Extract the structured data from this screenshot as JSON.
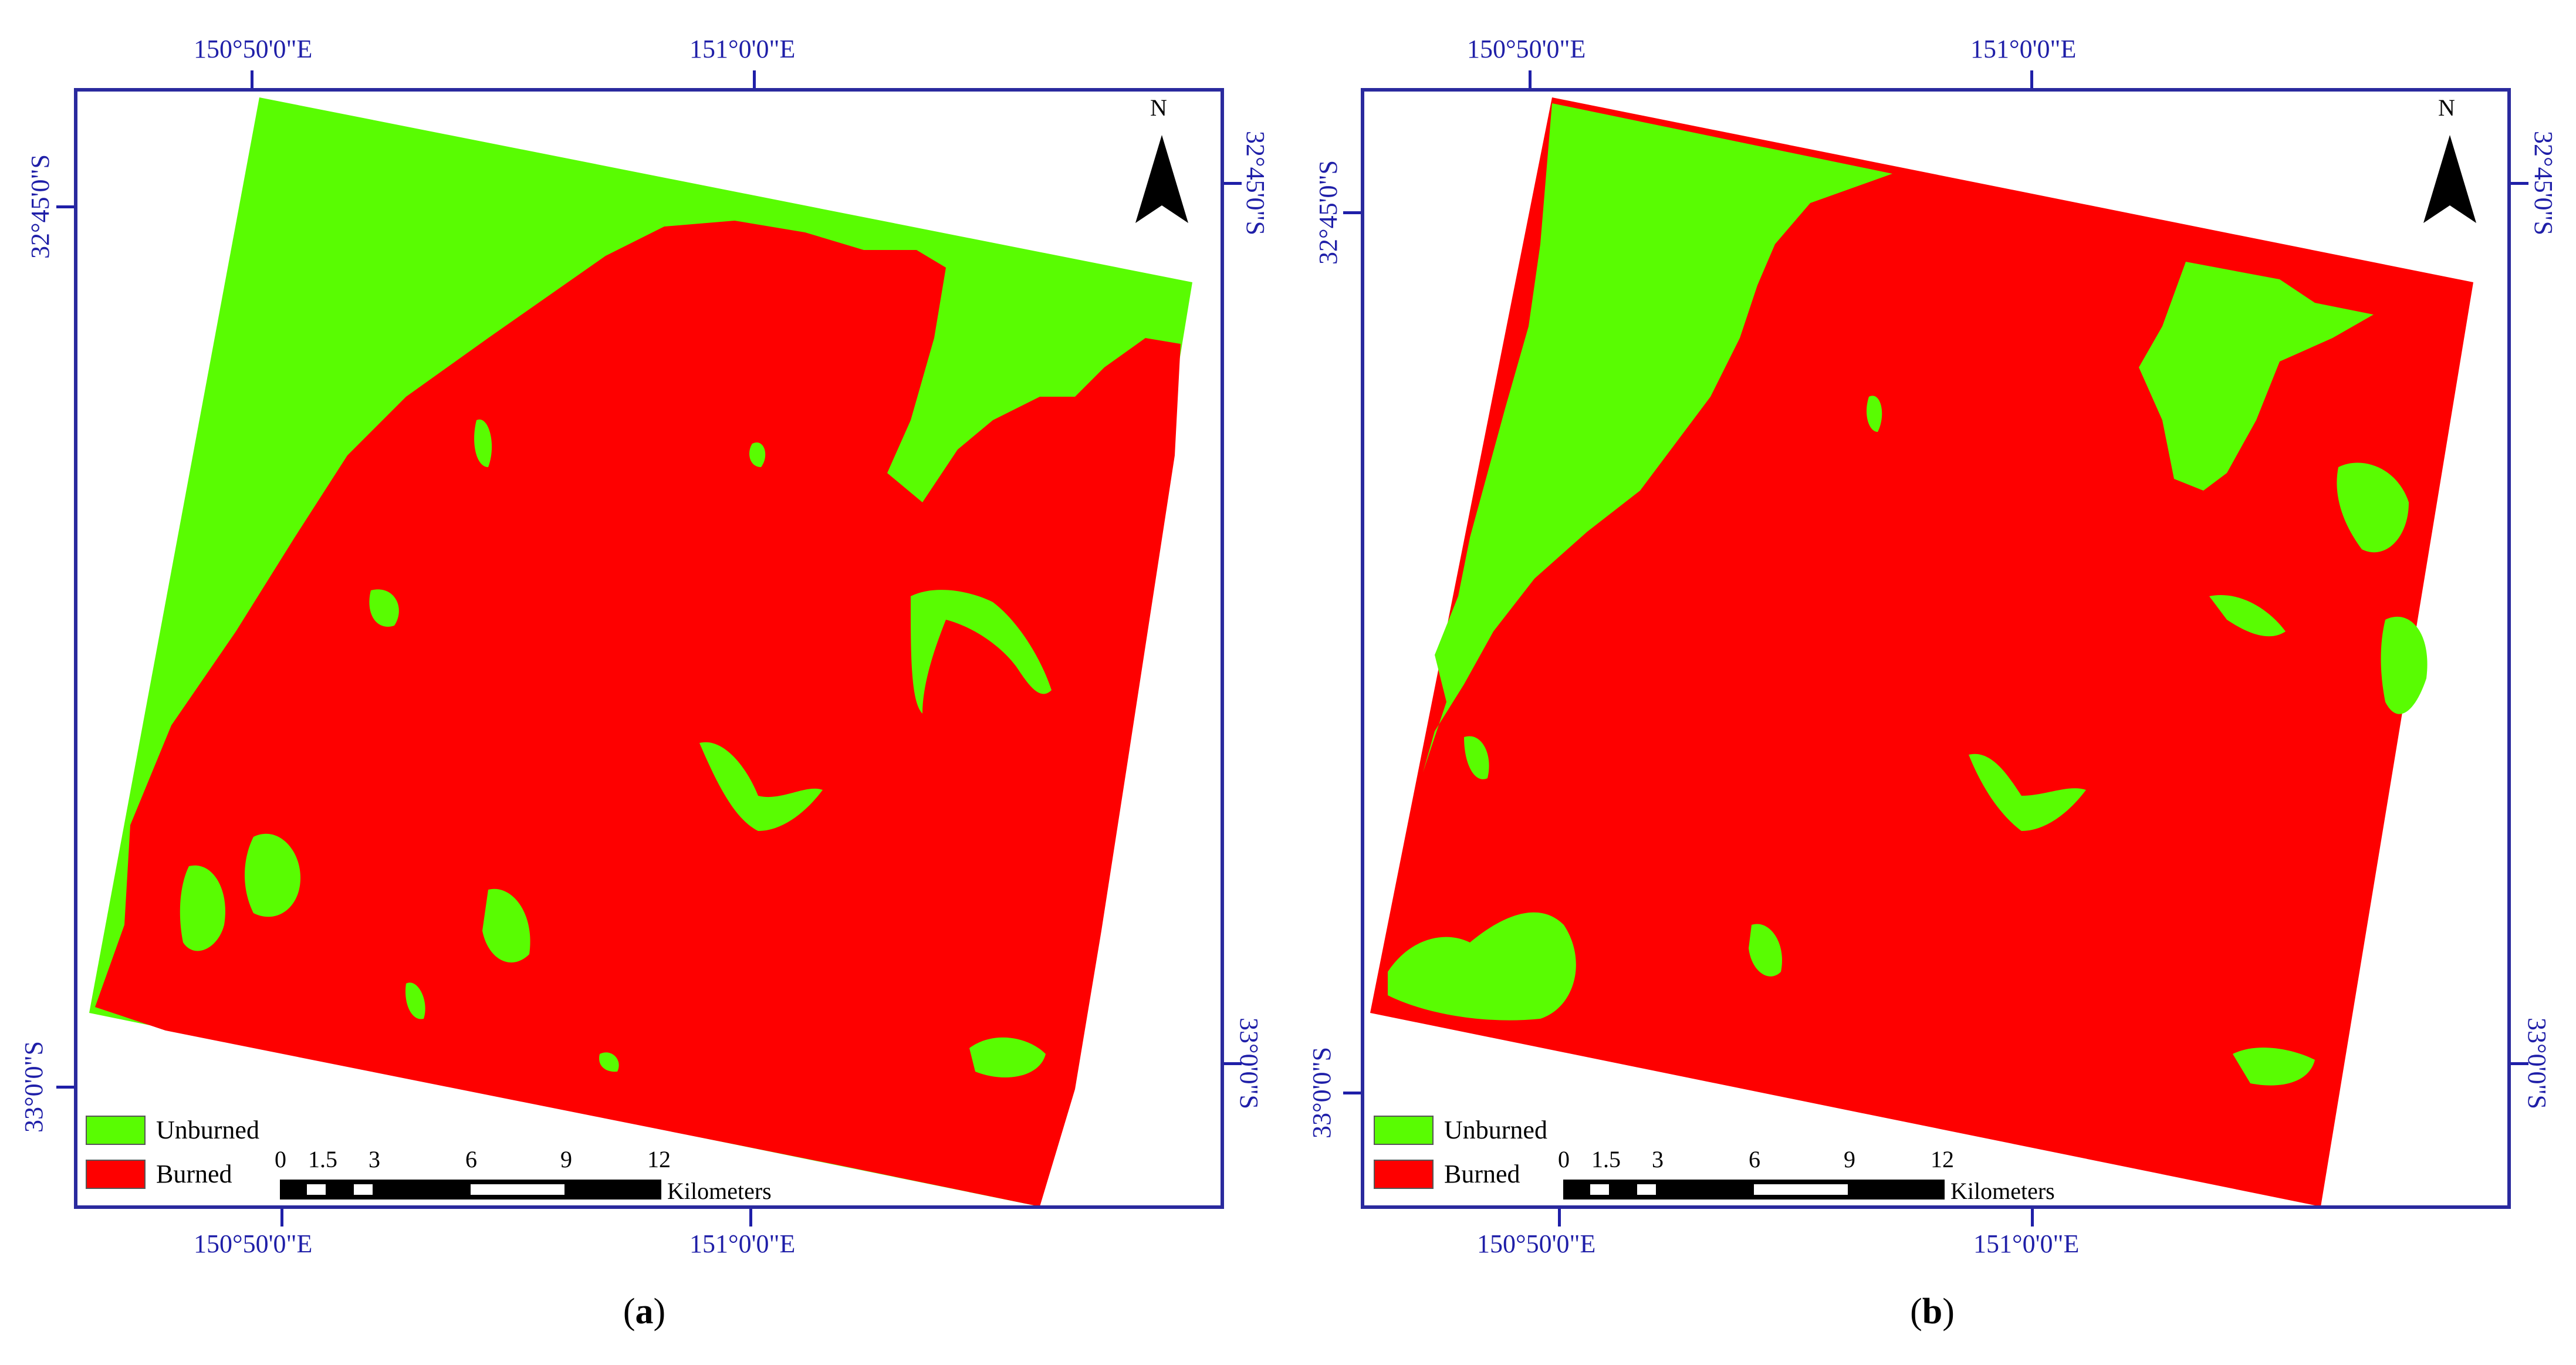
{
  "panels": [
    {
      "id": "a",
      "caption_prefix": "(",
      "caption_letter": "a",
      "caption_suffix": ")",
      "coords": {
        "top": [
          "150°50'0\"E",
          "151°0'0\"E"
        ],
        "bottom": [
          "150°50'0\"E",
          "151°0'0\"E"
        ],
        "left": [
          "32°45'0\"S",
          "33°0'0\"S"
        ],
        "right": [
          "32°45'0\"S",
          "33°0'0\"S"
        ]
      },
      "north_label": "N",
      "legend": [
        {
          "label": "Unburned",
          "color": "#59fc02"
        },
        {
          "label": "Burned",
          "color": "#fe0000"
        }
      ],
      "scale": {
        "ticks": [
          "0",
          "1.5",
          "3",
          "6",
          "9",
          "12"
        ],
        "unit": "Kilometers"
      }
    },
    {
      "id": "b",
      "caption_prefix": "(",
      "caption_letter": "b",
      "caption_suffix": ")",
      "coords": {
        "top": [
          "150°50'0\"E",
          "151°0'0\"E"
        ],
        "bottom": [
          "150°50'0\"E",
          "151°0'0\"E"
        ],
        "left": [
          "32°45'0\"S",
          "33°0'0\"S"
        ],
        "right": [
          "32°45'0\"S",
          "33°0'0\"S"
        ]
      },
      "north_label": "N",
      "legend": [
        {
          "label": "Unburned",
          "color": "#59fc02"
        },
        {
          "label": "Burned",
          "color": "#fe0000"
        }
      ],
      "scale": {
        "ticks": [
          "0",
          "1.5",
          "3",
          "6",
          "9",
          "12"
        ],
        "unit": "Kilometers"
      }
    }
  ],
  "colors": {
    "unburned": "#59fc02",
    "burned": "#fe0000",
    "frame": "#2a2a9e",
    "coord_text": "#1f1fa8"
  }
}
